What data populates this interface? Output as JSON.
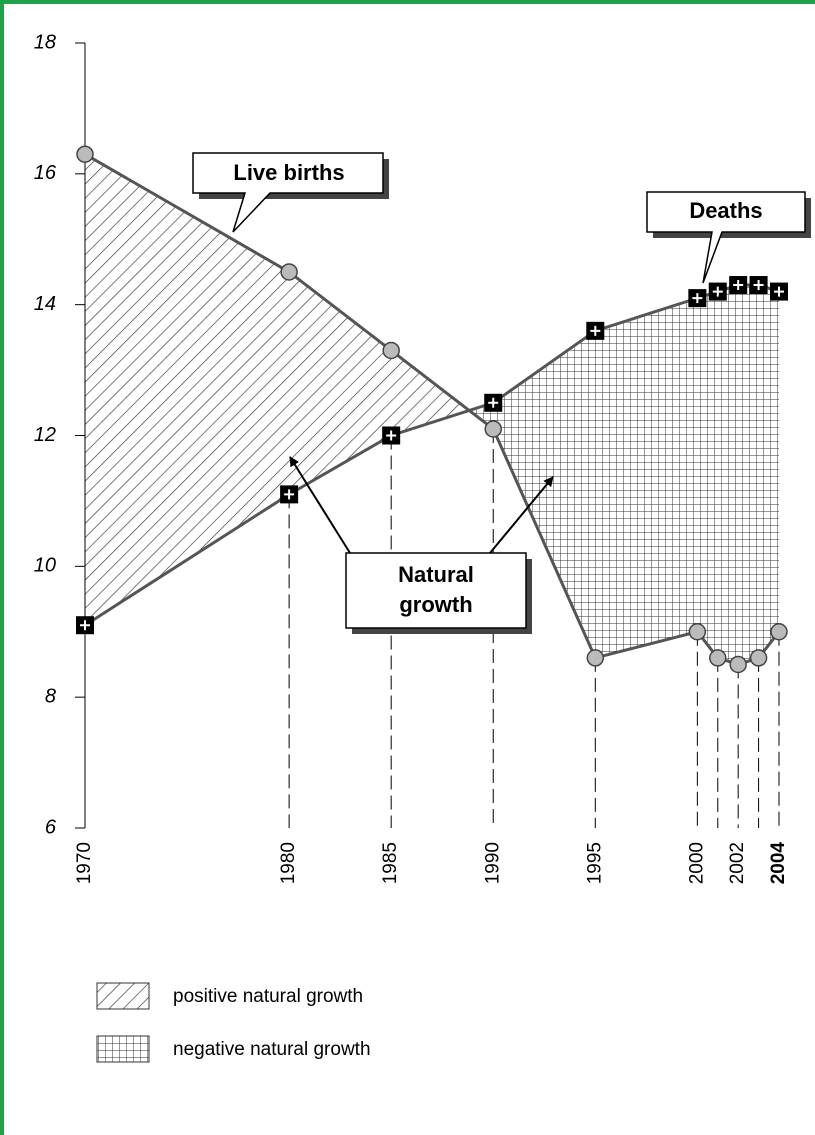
{
  "chart_data": {
    "type": "line",
    "x": [
      1970,
      1980,
      1985,
      1990,
      1995,
      2000,
      2001,
      2002,
      2003,
      2004
    ],
    "series": [
      {
        "name": "Live births",
        "color": "#555555",
        "values": [
          16.3,
          14.5,
          13.3,
          12.1,
          8.6,
          9.0,
          8.6,
          8.5,
          8.6,
          9.0
        ]
      },
      {
        "name": "Deaths",
        "color": "#555555",
        "values": [
          9.1,
          11.1,
          12.0,
          12.5,
          13.6,
          14.1,
          14.2,
          14.3,
          14.3,
          14.2
        ]
      }
    ],
    "xlim": [
      1970,
      2004
    ],
    "xticks": [
      1970,
      1980,
      1985,
      1990,
      1995,
      2000,
      2002,
      2004
    ],
    "ylim": [
      6,
      18
    ],
    "yticks": [
      6,
      8,
      10,
      12,
      14,
      16,
      18
    ],
    "annotations": [
      "Natural",
      "growth"
    ],
    "legend": [
      "positive natural growth",
      "negative natural growth"
    ]
  }
}
